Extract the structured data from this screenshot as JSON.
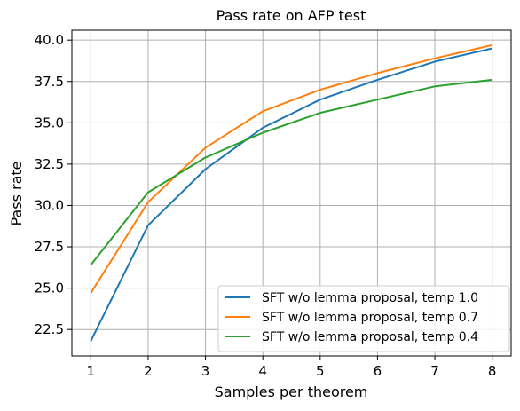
{
  "chart_data": {
    "type": "line",
    "title": "Pass rate on AFP test",
    "xlabel": "Samples per theorem",
    "ylabel": "Pass rate",
    "x": [
      1,
      2,
      3,
      4,
      5,
      6,
      7,
      8
    ],
    "xlim": [
      0.67,
      8.33
    ],
    "ylim": [
      20.9,
      40.6
    ],
    "yticks": [
      "22.5",
      "25.0",
      "27.5",
      "30.0",
      "32.5",
      "35.0",
      "37.5",
      "40.0"
    ],
    "xticks": [
      "1",
      "2",
      "3",
      "4",
      "5",
      "6",
      "7",
      "8"
    ],
    "grid": true,
    "legend_position": "bottom-right",
    "series": [
      {
        "name": "SFT w/o lemma proposal, temp 1.0",
        "color": "#1f77b4",
        "values": [
          21.8,
          28.8,
          32.2,
          34.7,
          36.4,
          37.6,
          38.7,
          39.5
        ]
      },
      {
        "name": "SFT w/o lemma proposal, temp 0.7",
        "color": "#ff7f0e",
        "values": [
          24.7,
          30.2,
          33.5,
          35.7,
          37.0,
          38.0,
          38.9,
          39.7
        ]
      },
      {
        "name": "SFT w/o lemma proposal, temp 0.4",
        "color": "#2ca02c",
        "values": [
          26.4,
          30.8,
          32.9,
          34.4,
          35.6,
          36.4,
          37.2,
          37.6
        ]
      }
    ]
  }
}
